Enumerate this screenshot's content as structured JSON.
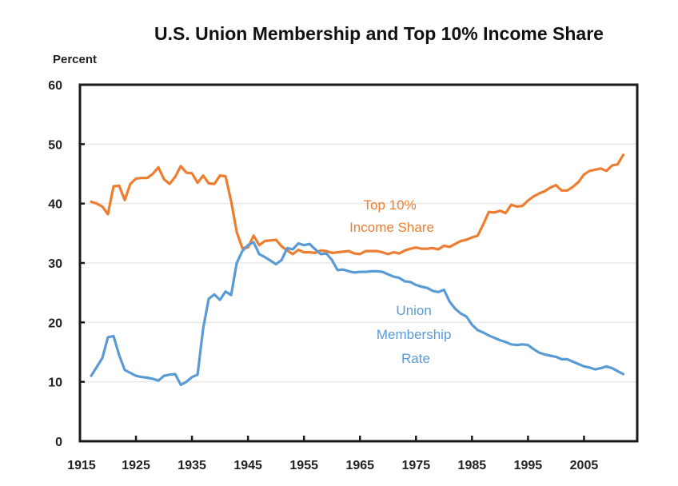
{
  "chart_data": {
    "type": "line",
    "title": "U.S. Union Membership and Top 10% Income Share",
    "xlabel": "",
    "ylabel": "Percent",
    "xlim": [
      1915,
      2014.5
    ],
    "ylim": [
      0,
      60
    ],
    "x_ticks": [
      1915,
      1925,
      1935,
      1945,
      1955,
      1965,
      1975,
      1985,
      1995,
      2005
    ],
    "y_ticks": [
      0,
      10,
      20,
      30,
      40,
      50,
      60
    ],
    "grid": "horizontal",
    "legend": "none (inline annotations)",
    "x": [
      1917,
      1918,
      1919,
      1920,
      1921,
      1922,
      1923,
      1924,
      1925,
      1926,
      1927,
      1928,
      1929,
      1930,
      1931,
      1932,
      1933,
      1934,
      1935,
      1936,
      1937,
      1938,
      1939,
      1940,
      1941,
      1942,
      1943,
      1944,
      1945,
      1946,
      1947,
      1948,
      1949,
      1950,
      1951,
      1952,
      1953,
      1954,
      1955,
      1956,
      1957,
      1958,
      1959,
      1960,
      1961,
      1962,
      1963,
      1964,
      1965,
      1966,
      1967,
      1968,
      1969,
      1970,
      1971,
      1972,
      1973,
      1974,
      1975,
      1976,
      1977,
      1978,
      1979,
      1980,
      1981,
      1982,
      1983,
      1984,
      1985,
      1986,
      1987,
      1988,
      1989,
      1990,
      1991,
      1992,
      1993,
      1994,
      1995,
      1996,
      1997,
      1998,
      1999,
      2000,
      2001,
      2002,
      2003,
      2004,
      2005,
      2006,
      2007,
      2008,
      2009,
      2010,
      2011,
      2012
    ],
    "series": [
      {
        "name": "Top 10% Income Share",
        "color": "#ed7d31",
        "label_lines": [
          "Top 10%",
          "Income Share"
        ],
        "values": [
          40.3,
          40.0,
          39.5,
          38.2,
          42.9,
          43.0,
          40.6,
          43.3,
          44.2,
          44.3,
          44.3,
          45.0,
          46.1,
          44.1,
          43.3,
          44.5,
          46.3,
          45.2,
          45.1,
          43.5,
          44.7,
          43.4,
          43.3,
          44.7,
          44.6,
          40.4,
          35.2,
          32.5,
          32.6,
          34.6,
          33.0,
          33.7,
          33.8,
          33.9,
          32.8,
          32.1,
          31.5,
          32.2,
          31.8,
          31.8,
          31.7,
          32.1,
          32.0,
          31.7,
          31.8,
          31.9,
          32.0,
          31.6,
          31.5,
          32.0,
          32.0,
          32.0,
          31.8,
          31.5,
          31.8,
          31.6,
          32.1,
          32.4,
          32.6,
          32.4,
          32.4,
          32.5,
          32.3,
          32.9,
          32.7,
          33.2,
          33.7,
          33.9,
          34.3,
          34.6,
          36.5,
          38.6,
          38.5,
          38.8,
          38.4,
          39.8,
          39.5,
          39.6,
          40.5,
          41.2,
          41.7,
          42.1,
          42.7,
          43.1,
          42.2,
          42.2,
          42.8,
          43.6,
          44.9,
          45.5,
          45.7,
          45.9,
          45.5,
          46.4,
          46.6,
          48.2
        ]
      },
      {
        "name": "Union Membership Rate",
        "color": "#5b9bd5",
        "label_lines": [
          "Union",
          "Membership",
          "Rate"
        ],
        "values": [
          11.0,
          12.5,
          14.0,
          17.5,
          17.7,
          14.5,
          12.0,
          11.5,
          11.0,
          10.8,
          10.7,
          10.5,
          10.2,
          11.0,
          11.2,
          11.3,
          9.5,
          10.0,
          10.8,
          11.2,
          19.0,
          24.0,
          24.7,
          23.8,
          25.2,
          24.6,
          30.0,
          32.0,
          33.0,
          33.5,
          31.5,
          31.0,
          30.4,
          29.8,
          30.5,
          32.5,
          32.3,
          33.3,
          33.0,
          33.2,
          32.3,
          31.5,
          31.6,
          30.5,
          28.8,
          28.9,
          28.6,
          28.4,
          28.5,
          28.5,
          28.6,
          28.6,
          28.5,
          28.1,
          27.7,
          27.5,
          26.9,
          26.8,
          26.3,
          26.0,
          25.8,
          25.3,
          25.1,
          25.5,
          23.5,
          22.3,
          21.5,
          21.0,
          19.6,
          18.7,
          18.3,
          17.8,
          17.4,
          17.0,
          16.7,
          16.3,
          16.2,
          16.3,
          16.2,
          15.5,
          14.9,
          14.6,
          14.4,
          14.2,
          13.8,
          13.8,
          13.4,
          13.0,
          12.6,
          12.4,
          12.1,
          12.3,
          12.6,
          12.3,
          11.8,
          11.3
        ]
      }
    ]
  }
}
